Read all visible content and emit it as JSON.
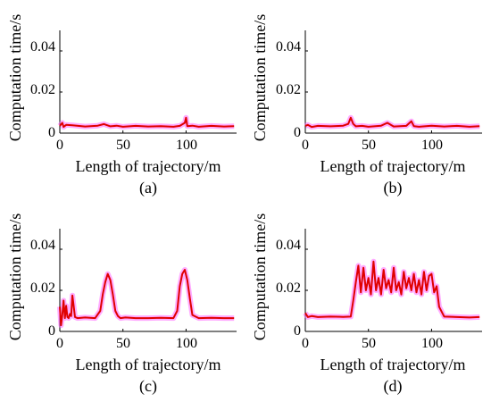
{
  "chart_data": [
    {
      "type": "line",
      "caption": "(a)",
      "xlabel": "Length of trajectory/m",
      "ylabel": "Computation time/s",
      "xlim": [
        0,
        140
      ],
      "ylim": [
        0,
        0.05
      ],
      "xticks": [
        "0",
        "50",
        "100"
      ],
      "yticks": [
        "0",
        "0.02",
        "0.04"
      ],
      "series": [
        {
          "color": "#e00000",
          "band_color": "#ff66ff",
          "x": [
            0,
            2,
            3,
            5,
            10,
            20,
            30,
            35,
            40,
            45,
            50,
            60,
            70,
            80,
            90,
            95,
            99,
            100,
            101,
            105,
            110,
            120,
            130,
            138
          ],
          "y": [
            0.0035,
            0.005,
            0.003,
            0.004,
            0.0038,
            0.0032,
            0.0036,
            0.0044,
            0.0033,
            0.0036,
            0.0031,
            0.0035,
            0.0032,
            0.0034,
            0.0031,
            0.0035,
            0.005,
            0.0075,
            0.0034,
            0.0036,
            0.0031,
            0.0035,
            0.0032,
            0.0034
          ]
        }
      ]
    },
    {
      "type": "line",
      "caption": "(b)",
      "xlabel": "Length of trajectory/m",
      "ylabel": "Computation time/s",
      "xlim": [
        0,
        140
      ],
      "ylim": [
        0,
        0.05
      ],
      "xticks": [
        "0",
        "50",
        "100"
      ],
      "yticks": [
        "0",
        "0.02",
        "0.04"
      ],
      "series": [
        {
          "color": "#e00000",
          "band_color": "#ff66ff",
          "x": [
            0,
            2,
            5,
            10,
            20,
            30,
            34,
            36,
            38,
            40,
            45,
            50,
            60,
            65,
            70,
            80,
            84,
            86,
            90,
            100,
            110,
            120,
            130,
            138
          ],
          "y": [
            0.0035,
            0.004,
            0.003,
            0.0035,
            0.0033,
            0.0036,
            0.0045,
            0.0075,
            0.0045,
            0.0033,
            0.0035,
            0.0031,
            0.0036,
            0.005,
            0.0032,
            0.0035,
            0.0058,
            0.0034,
            0.0031,
            0.0036,
            0.0032,
            0.0035,
            0.0031,
            0.0034
          ]
        }
      ]
    },
    {
      "type": "line",
      "caption": "(c)",
      "xlabel": "Length of trajectory/m",
      "ylabel": "Computation time/s",
      "xlim": [
        0,
        140
      ],
      "ylim": [
        0,
        0.05
      ],
      "xticks": [
        "0",
        "50",
        "100"
      ],
      "yticks": [
        "0",
        "0.02",
        "0.04"
      ],
      "series": [
        {
          "color": "#e00000",
          "band_color": "#ff66ff",
          "x": [
            0,
            1,
            2,
            3,
            4,
            5,
            6,
            7,
            8,
            9,
            10,
            12,
            14,
            20,
            28,
            32,
            34,
            36,
            38,
            40,
            42,
            44,
            46,
            48,
            52,
            60,
            70,
            80,
            90,
            93,
            95,
            97,
            99,
            101,
            103,
            105,
            110,
            120,
            130,
            138
          ],
          "y": [
            0.012,
            0.003,
            0.008,
            0.015,
            0.0065,
            0.0125,
            0.007,
            0.0065,
            0.0085,
            0.0075,
            0.0175,
            0.007,
            0.0065,
            0.0068,
            0.0065,
            0.01,
            0.018,
            0.024,
            0.028,
            0.025,
            0.018,
            0.01,
            0.0075,
            0.0065,
            0.0068,
            0.0065,
            0.0065,
            0.0066,
            0.0065,
            0.01,
            0.022,
            0.028,
            0.03,
            0.025,
            0.016,
            0.008,
            0.0065,
            0.0066,
            0.0065,
            0.0065
          ]
        }
      ]
    },
    {
      "type": "line",
      "caption": "(d)",
      "xlabel": "Length of trajectory/m",
      "ylabel": "Computation time/s",
      "xlim": [
        0,
        140
      ],
      "ylim": [
        0,
        0.05
      ],
      "xticks": [
        "0",
        "50",
        "100"
      ],
      "yticks": [
        "0",
        "0.02",
        "0.04"
      ],
      "series": [
        {
          "color": "#e00000",
          "band_color": "#ff66ff",
          "x": [
            0,
            2,
            5,
            10,
            20,
            30,
            36,
            38,
            40,
            42,
            44,
            46,
            48,
            50,
            52,
            54,
            56,
            58,
            60,
            62,
            64,
            66,
            68,
            70,
            72,
            74,
            76,
            78,
            80,
            82,
            84,
            86,
            88,
            90,
            92,
            94,
            96,
            98,
            100,
            102,
            104,
            106,
            110,
            120,
            130,
            138
          ],
          "y": [
            0.009,
            0.007,
            0.0075,
            0.007,
            0.0072,
            0.0071,
            0.0072,
            0.015,
            0.024,
            0.032,
            0.019,
            0.031,
            0.02,
            0.026,
            0.018,
            0.034,
            0.02,
            0.026,
            0.018,
            0.03,
            0.021,
            0.025,
            0.019,
            0.031,
            0.02,
            0.024,
            0.018,
            0.029,
            0.021,
            0.026,
            0.02,
            0.028,
            0.019,
            0.025,
            0.018,
            0.029,
            0.02,
            0.027,
            0.028,
            0.019,
            0.022,
            0.012,
            0.0072,
            0.007,
            0.0068,
            0.007
          ]
        }
      ]
    }
  ]
}
